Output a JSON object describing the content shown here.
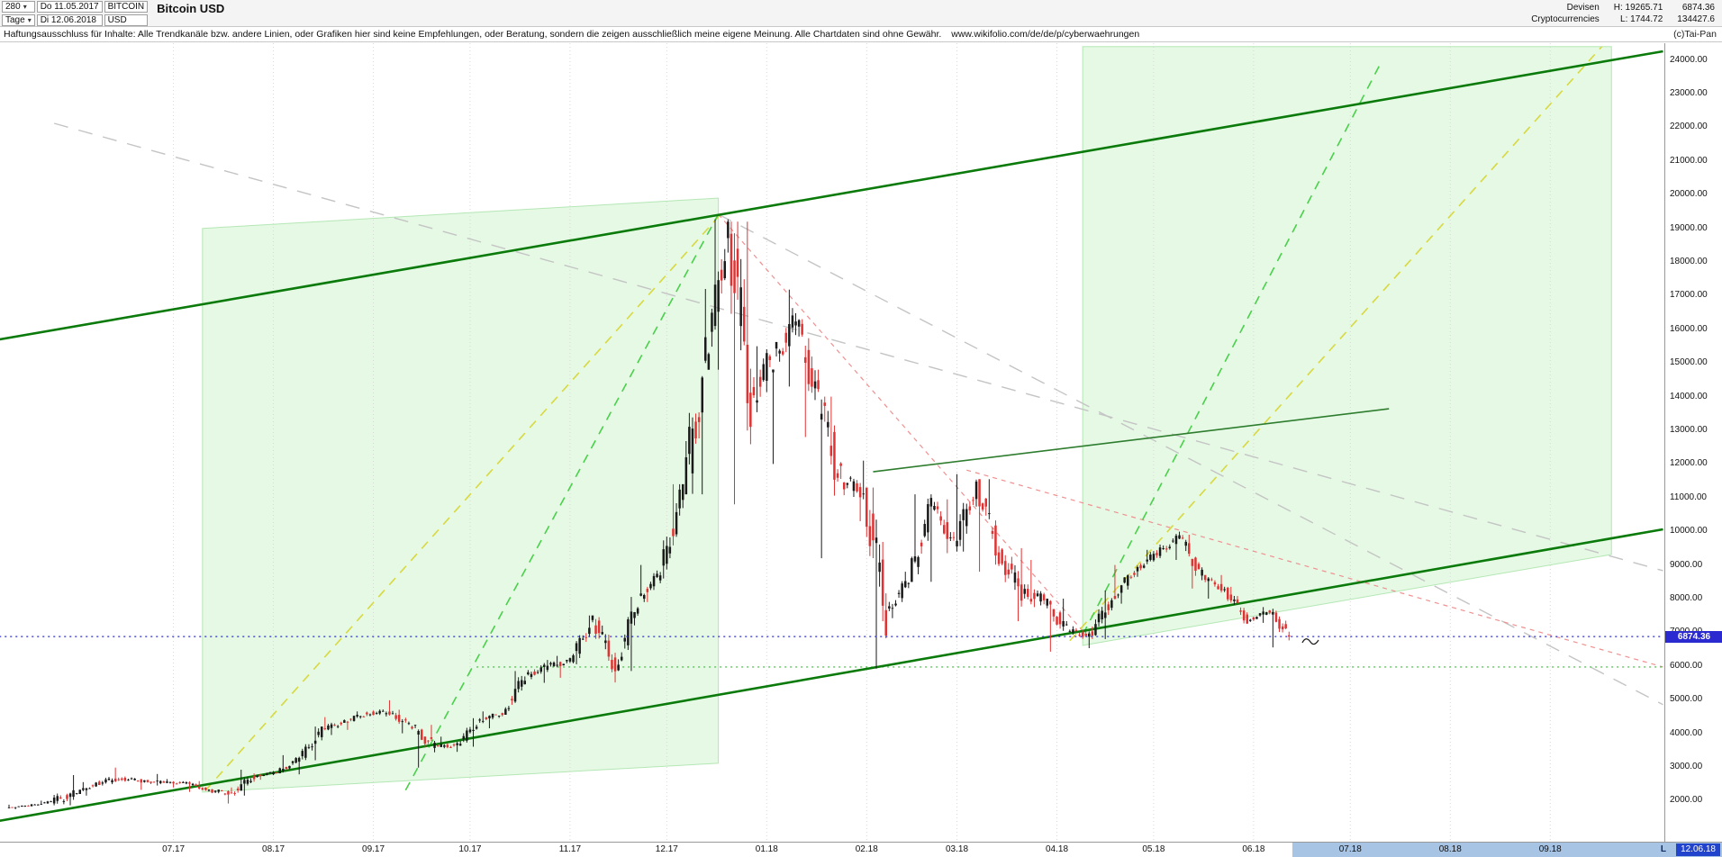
{
  "header": {
    "bars_count": "280",
    "period_label": "Tage",
    "date_from_label": "Do 11.05.2017",
    "date_to_label": "Di 12.06.2018",
    "symbol": "BITCOIN",
    "currency": "USD",
    "title": "Bitcoin USD",
    "category_line1": "Devisen",
    "category_line2": "Cryptocurrencies",
    "high_label": "H: 19265.71",
    "low_label": "L: 1744.72",
    "last_price": "6874.36",
    "volume": "134427.6",
    "copyright": "(c)Tai-Pan"
  },
  "disclaimer": {
    "text": "Haftungsausschluss für Inhalte: Alle Trendkanäle bzw. andere Linien, oder Grafiken hier sind keine Empfehlungen, oder Beratung, sondern die zeigen ausschließlich meine eigene Meinung. Alle Chartdaten sind ohne Gewähr.",
    "url": "www.wikifolio.com/de/de/p/cyberwaehrungen"
  },
  "chart_data": {
    "type": "candlestick",
    "title": "Bitcoin USD",
    "current_price": 6874.36,
    "period_high": 19265.71,
    "period_low": 1744.72,
    "colors": {
      "up": "#1a1a1a",
      "down": "#e03232",
      "channel": "#0a7a0a",
      "yellow": "#d8d840",
      "green_dash": "#4ad04a",
      "gray_dash": "#c4c4c4",
      "red_dash": "#f09090",
      "support": "#3cb83c",
      "price_line": "#2a2ad0",
      "grid": "#d8d8d8",
      "region_fill": "rgba(150,230,150,0.25)",
      "region_stroke": "rgba(0,170,0,0.25)"
    },
    "y_axis": {
      "min": 780,
      "max": 24500,
      "ticks": [
        2000,
        3000,
        4000,
        5000,
        6000,
        7000,
        8000,
        9000,
        10000,
        11000,
        12000,
        13000,
        14000,
        15000,
        16000,
        17000,
        18000,
        19000,
        20000,
        21000,
        22000,
        23000,
        24000
      ]
    },
    "x_axis": {
      "labels": [
        {
          "t": "07.17",
          "d": 51
        },
        {
          "t": "08.17",
          "d": 82
        },
        {
          "t": "09.17",
          "d": 113
        },
        {
          "t": "10.17",
          "d": 143
        },
        {
          "t": "11.17",
          "d": 174
        },
        {
          "t": "12.17",
          "d": 204
        },
        {
          "t": "01.18",
          "d": 235
        },
        {
          "t": "02.18",
          "d": 266
        },
        {
          "t": "03.18",
          "d": 294
        },
        {
          "t": "04.18",
          "d": 325
        },
        {
          "t": "05.18",
          "d": 355
        },
        {
          "t": "06.18",
          "d": 386
        },
        {
          "t": "07.18",
          "d": 416
        },
        {
          "t": "08.18",
          "d": 447
        },
        {
          "t": "09.18",
          "d": 478
        }
      ]
    },
    "timeline": {
      "future_start_day": 398,
      "last_label_prefix": "L",
      "last_date": "12.06.18"
    },
    "weekly_ohlc": [
      [
        1790,
        1880,
        1744.72,
        1850
      ],
      [
        1850,
        2000,
        1830,
        1970
      ],
      [
        1970,
        2760,
        1860,
        2190
      ],
      [
        2190,
        2550,
        2150,
        2510
      ],
      [
        2510,
        2980,
        2450,
        2660
      ],
      [
        2660,
        2720,
        2320,
        2590
      ],
      [
        2590,
        2790,
        2450,
        2540
      ],
      [
        2540,
        2640,
        2390,
        2520
      ],
      [
        2520,
        2580,
        2260,
        2290
      ],
      [
        2290,
        2390,
        1913,
        2230
      ],
      [
        2230,
        2920,
        2150,
        2730
      ],
      [
        2730,
        2880,
        2620,
        2840
      ],
      [
        2840,
        3350,
        2780,
        3250
      ],
      [
        3250,
        4200,
        3200,
        4100
      ],
      [
        4100,
        4480,
        3950,
        4350
      ],
      [
        4350,
        4650,
        4100,
        4600
      ],
      [
        4600,
        4980,
        4500,
        4620
      ],
      [
        4620,
        4700,
        4000,
        4170
      ],
      [
        4170,
        4250,
        2980,
        3600
      ],
      [
        3600,
        3900,
        3450,
        3650
      ],
      [
        3650,
        4450,
        3600,
        4400
      ],
      [
        4400,
        4650,
        4150,
        4600
      ],
      [
        4600,
        5850,
        4550,
        5700
      ],
      [
        5700,
        6180,
        5500,
        5990
      ],
      [
        5990,
        6300,
        5650,
        6150
      ],
      [
        6150,
        7500,
        6050,
        7400
      ],
      [
        7400,
        7450,
        5510,
        5950
      ],
      [
        5950,
        8050,
        5850,
        8000
      ],
      [
        8000,
        9000,
        7900,
        8750
      ],
      [
        8750,
        11400,
        8600,
        11250
      ],
      [
        11250,
        17200,
        11100,
        15000
      ],
      [
        15000,
        19265.71,
        14800,
        19100
      ],
      [
        19100,
        19200,
        10800,
        14000
      ],
      [
        14000,
        15500,
        12000,
        15200
      ],
      [
        15200,
        17180,
        14300,
        16200
      ],
      [
        16200,
        16300,
        12800,
        13800
      ],
      [
        13800,
        14000,
        9200,
        11500
      ],
      [
        11500,
        12100,
        10300,
        11200
      ],
      [
        11200,
        11300,
        5920,
        7600
      ],
      [
        7600,
        8800,
        7420,
        8550
      ],
      [
        8550,
        11100,
        8500,
        10800
      ],
      [
        10800,
        10950,
        9350,
        9600
      ],
      [
        9600,
        11700,
        9400,
        11400
      ],
      [
        11400,
        11550,
        8800,
        9300
      ],
      [
        9300,
        9500,
        7330,
        8200
      ],
      [
        8200,
        9150,
        7750,
        7950
      ],
      [
        7950,
        8000,
        6425,
        7050
      ],
      [
        7050,
        7180,
        6530,
        6900
      ],
      [
        6900,
        8240,
        6800,
        8000
      ],
      [
        8000,
        9000,
        7850,
        8850
      ],
      [
        8850,
        9450,
        8650,
        9350
      ],
      [
        9350,
        9990,
        9150,
        9830
      ],
      [
        9830,
        9900,
        8300,
        8650
      ],
      [
        8650,
        8700,
        8000,
        8250
      ],
      [
        8250,
        8350,
        7250,
        7360
      ],
      [
        7360,
        7750,
        7280,
        7640
      ],
      [
        7640,
        7700,
        6550,
        6874.36
      ]
    ],
    "regions": [
      {
        "name": "channel-shade-left",
        "points": [
          [
            60,
            19000
          ],
          [
            220,
            19900
          ],
          [
            220,
            3110
          ],
          [
            60,
            2250
          ]
        ]
      },
      {
        "name": "channel-shade-right",
        "points": [
          [
            333,
            24400
          ],
          [
            497,
            24400
          ],
          [
            497,
            9310
          ],
          [
            333,
            6610
          ]
        ]
      }
    ],
    "overlays": [
      {
        "name": "gray-trendline-upper",
        "type": "line",
        "d1": 14,
        "p1": 22120,
        "d2": 513,
        "p2": 8830,
        "color": "gray_dash",
        "width": 1.4,
        "dash": "16,12"
      },
      {
        "name": "gray-trendline-lower",
        "type": "line",
        "d1": 220,
        "p1": 19420,
        "d2": 513,
        "p2": 4850,
        "color": "gray_dash",
        "width": 1.4,
        "dash": "16,12"
      },
      {
        "name": "red-trendline-steep",
        "type": "line",
        "d1": 220,
        "p1": 19420,
        "d2": 334,
        "p2": 6930,
        "color": "red_dash",
        "width": 1.2,
        "dash": "5,5"
      },
      {
        "name": "red-trendline-flat",
        "type": "line",
        "d1": 297,
        "p1": 11820,
        "d2": 513,
        "p2": 5970,
        "color": "red_dash",
        "width": 1.2,
        "dash": "5,5"
      },
      {
        "name": "rally-trendline-yellow",
        "type": "line",
        "d1": 61,
        "p1": 2310,
        "d2": 221,
        "p2": 19450,
        "color": "yellow",
        "width": 1.6,
        "dash": "10,8"
      },
      {
        "name": "right-trendline-yellow",
        "type": "line",
        "d1": 329,
        "p1": 6750,
        "d2": 494,
        "p2": 24400,
        "color": "yellow",
        "width": 1.6,
        "dash": "10,8"
      },
      {
        "name": "rally-trendline-green",
        "type": "line",
        "d1": 123,
        "p1": 2310,
        "d2": 220,
        "p2": 19420,
        "color": "green_dash",
        "width": 1.6,
        "dash": "10,8"
      },
      {
        "name": "right-trendline-green",
        "type": "line",
        "d1": 333,
        "p1": 6930,
        "d2": 425,
        "p2": 23830,
        "color": "green_dash",
        "width": 1.6,
        "dash": "10,8"
      },
      {
        "name": "support-horizontal-green",
        "type": "hline",
        "p": 5970,
        "d1": 145,
        "d2": 513,
        "color": "support",
        "width": 1.2,
        "dash": "2,4"
      },
      {
        "name": "channel-upper-line",
        "type": "line",
        "d1": -3,
        "p1": 15700,
        "d2": 513,
        "p2": 24260,
        "color": "channel",
        "width": 2.6
      },
      {
        "name": "channel-lower-line",
        "type": "line",
        "d1": -3,
        "p1": 1400,
        "d2": 513,
        "p2": 10060,
        "color": "channel",
        "width": 2.6
      },
      {
        "name": "mid-trendline-green",
        "type": "line",
        "d1": 268,
        "p1": 11770,
        "d2": 428,
        "p2": 13640,
        "color": "#2e7d2e",
        "width": 1.6
      },
      {
        "name": "current-price-line",
        "type": "hline",
        "p": 6874.36,
        "d1": -3,
        "d2": 513,
        "color": "price_line",
        "width": 1.2,
        "dash": "2,4",
        "above": true
      }
    ],
    "annotation": {
      "name": "freehand-mark",
      "d": 401,
      "p": 6680
    }
  }
}
